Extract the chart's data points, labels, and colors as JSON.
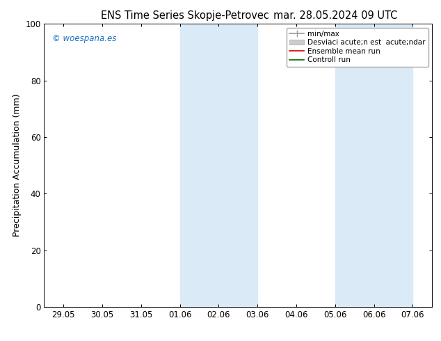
{
  "title_left": "ENS Time Series Skopje-Petrovec",
  "title_right": "mar. 28.05.2024 09 UTC",
  "ylabel": "Precipitation Accumulation (mm)",
  "ylim": [
    0,
    100
  ],
  "yticks": [
    0,
    20,
    40,
    60,
    80,
    100
  ],
  "xtick_labels": [
    "29.05",
    "30.05",
    "31.05",
    "01.06",
    "02.06",
    "03.06",
    "04.06",
    "05.06",
    "06.06",
    "07.06"
  ],
  "shaded_bands": [
    {
      "xstart": 3,
      "xend": 5,
      "color": "#daeaf7"
    },
    {
      "xstart": 7,
      "xend": 9,
      "color": "#daeaf7"
    }
  ],
  "watermark": "© woespana.es",
  "watermark_color": "#1a6fc4",
  "legend_items": [
    {
      "label": "min/max",
      "color": "#999999",
      "lw": 1.2
    },
    {
      "label": "Desviaci acute;n est  acute;ndar",
      "color": "#cccccc",
      "lw": 8
    },
    {
      "label": "Ensemble mean run",
      "color": "#cc0000",
      "lw": 1.2
    },
    {
      "label": "Controll run",
      "color": "#006600",
      "lw": 1.2
    }
  ],
  "background_color": "#ffffff",
  "plot_bg_color": "#ffffff",
  "title_fontsize": 10.5,
  "axis_label_fontsize": 9,
  "tick_fontsize": 8.5,
  "legend_fontsize": 7.5
}
